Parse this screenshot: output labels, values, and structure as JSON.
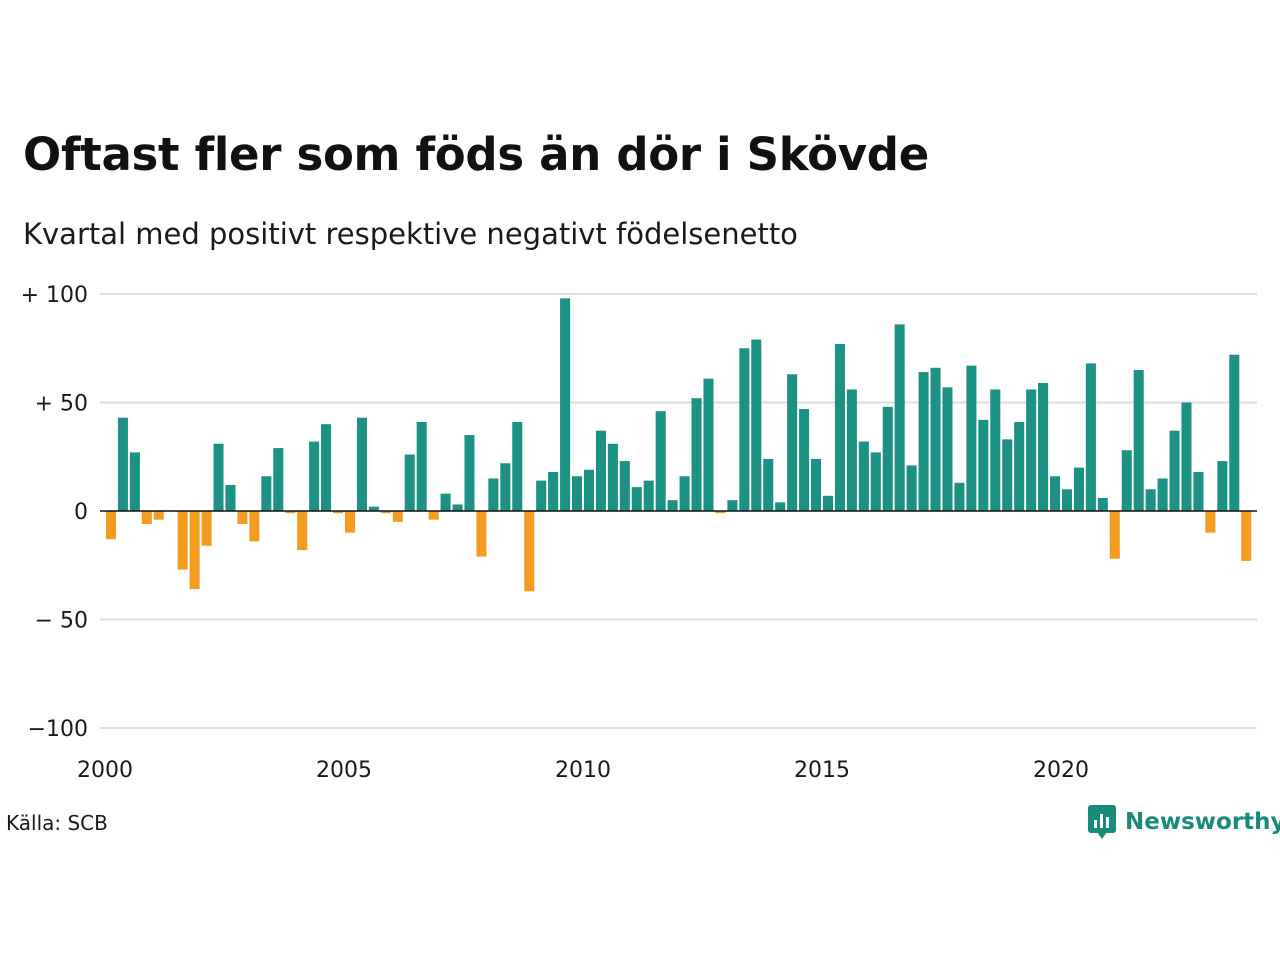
{
  "title": "Oftast fler som föds än dör i Skövde",
  "subtitle": "Kvartal med positivt respektive negativt födelsenetto",
  "source": "Källa: SCB",
  "brand": {
    "name": "Newsworthy",
    "icon": "newsworthy-logo-icon",
    "color": "#1a8a7a"
  },
  "colors": {
    "positive": "#1b9284",
    "negative": "#f49c1f",
    "grid": "#dddddd",
    "zero_line": "#111111"
  },
  "chart_data": {
    "type": "bar",
    "title": "Oftast fler som föds än dör i Skövde",
    "subtitle": "Kvartal med positivt respektive negativt födelsenetto",
    "xlabel": "",
    "ylabel": "",
    "x_ticks": [
      "2000",
      "2005",
      "2010",
      "2015",
      "2020"
    ],
    "x_tick_years": [
      2000,
      2005,
      2010,
      2015,
      2020
    ],
    "x_range": [
      2000,
      2024.1
    ],
    "y_ticks": [
      {
        "value": 100,
        "label": "+ 100"
      },
      {
        "value": 50,
        "label": "+  50"
      },
      {
        "value": 0,
        "label": "0"
      },
      {
        "value": -50,
        "label": "− 50"
      },
      {
        "value": -100,
        "label": "−100"
      }
    ],
    "ylim": [
      -100,
      100
    ],
    "grid": true,
    "start": "2000 Q1",
    "series": [
      {
        "values": [
          -13,
          43,
          27,
          -6,
          -4,
          0,
          -27,
          -36,
          -16,
          31,
          12,
          -6,
          -14,
          16,
          29,
          -1,
          -18,
          32,
          40,
          -1,
          -10,
          43,
          2,
          -1,
          -5,
          26,
          41,
          -4,
          8,
          3,
          35,
          -21,
          15,
          22,
          41,
          -37,
          14,
          18,
          98,
          16,
          19,
          37,
          31,
          23,
          11,
          14,
          46,
          5,
          16,
          52,
          61,
          -1,
          5,
          75,
          79,
          24,
          4,
          63,
          47,
          24,
          7,
          77,
          56,
          32,
          27,
          48,
          86,
          21,
          64,
          66,
          57,
          13,
          67,
          42,
          56,
          33,
          41,
          56,
          59,
          16,
          10,
          20,
          68,
          6,
          -22,
          28,
          65,
          10,
          15,
          37,
          50,
          18,
          -10,
          23,
          72,
          -23
        ]
      }
    ]
  }
}
